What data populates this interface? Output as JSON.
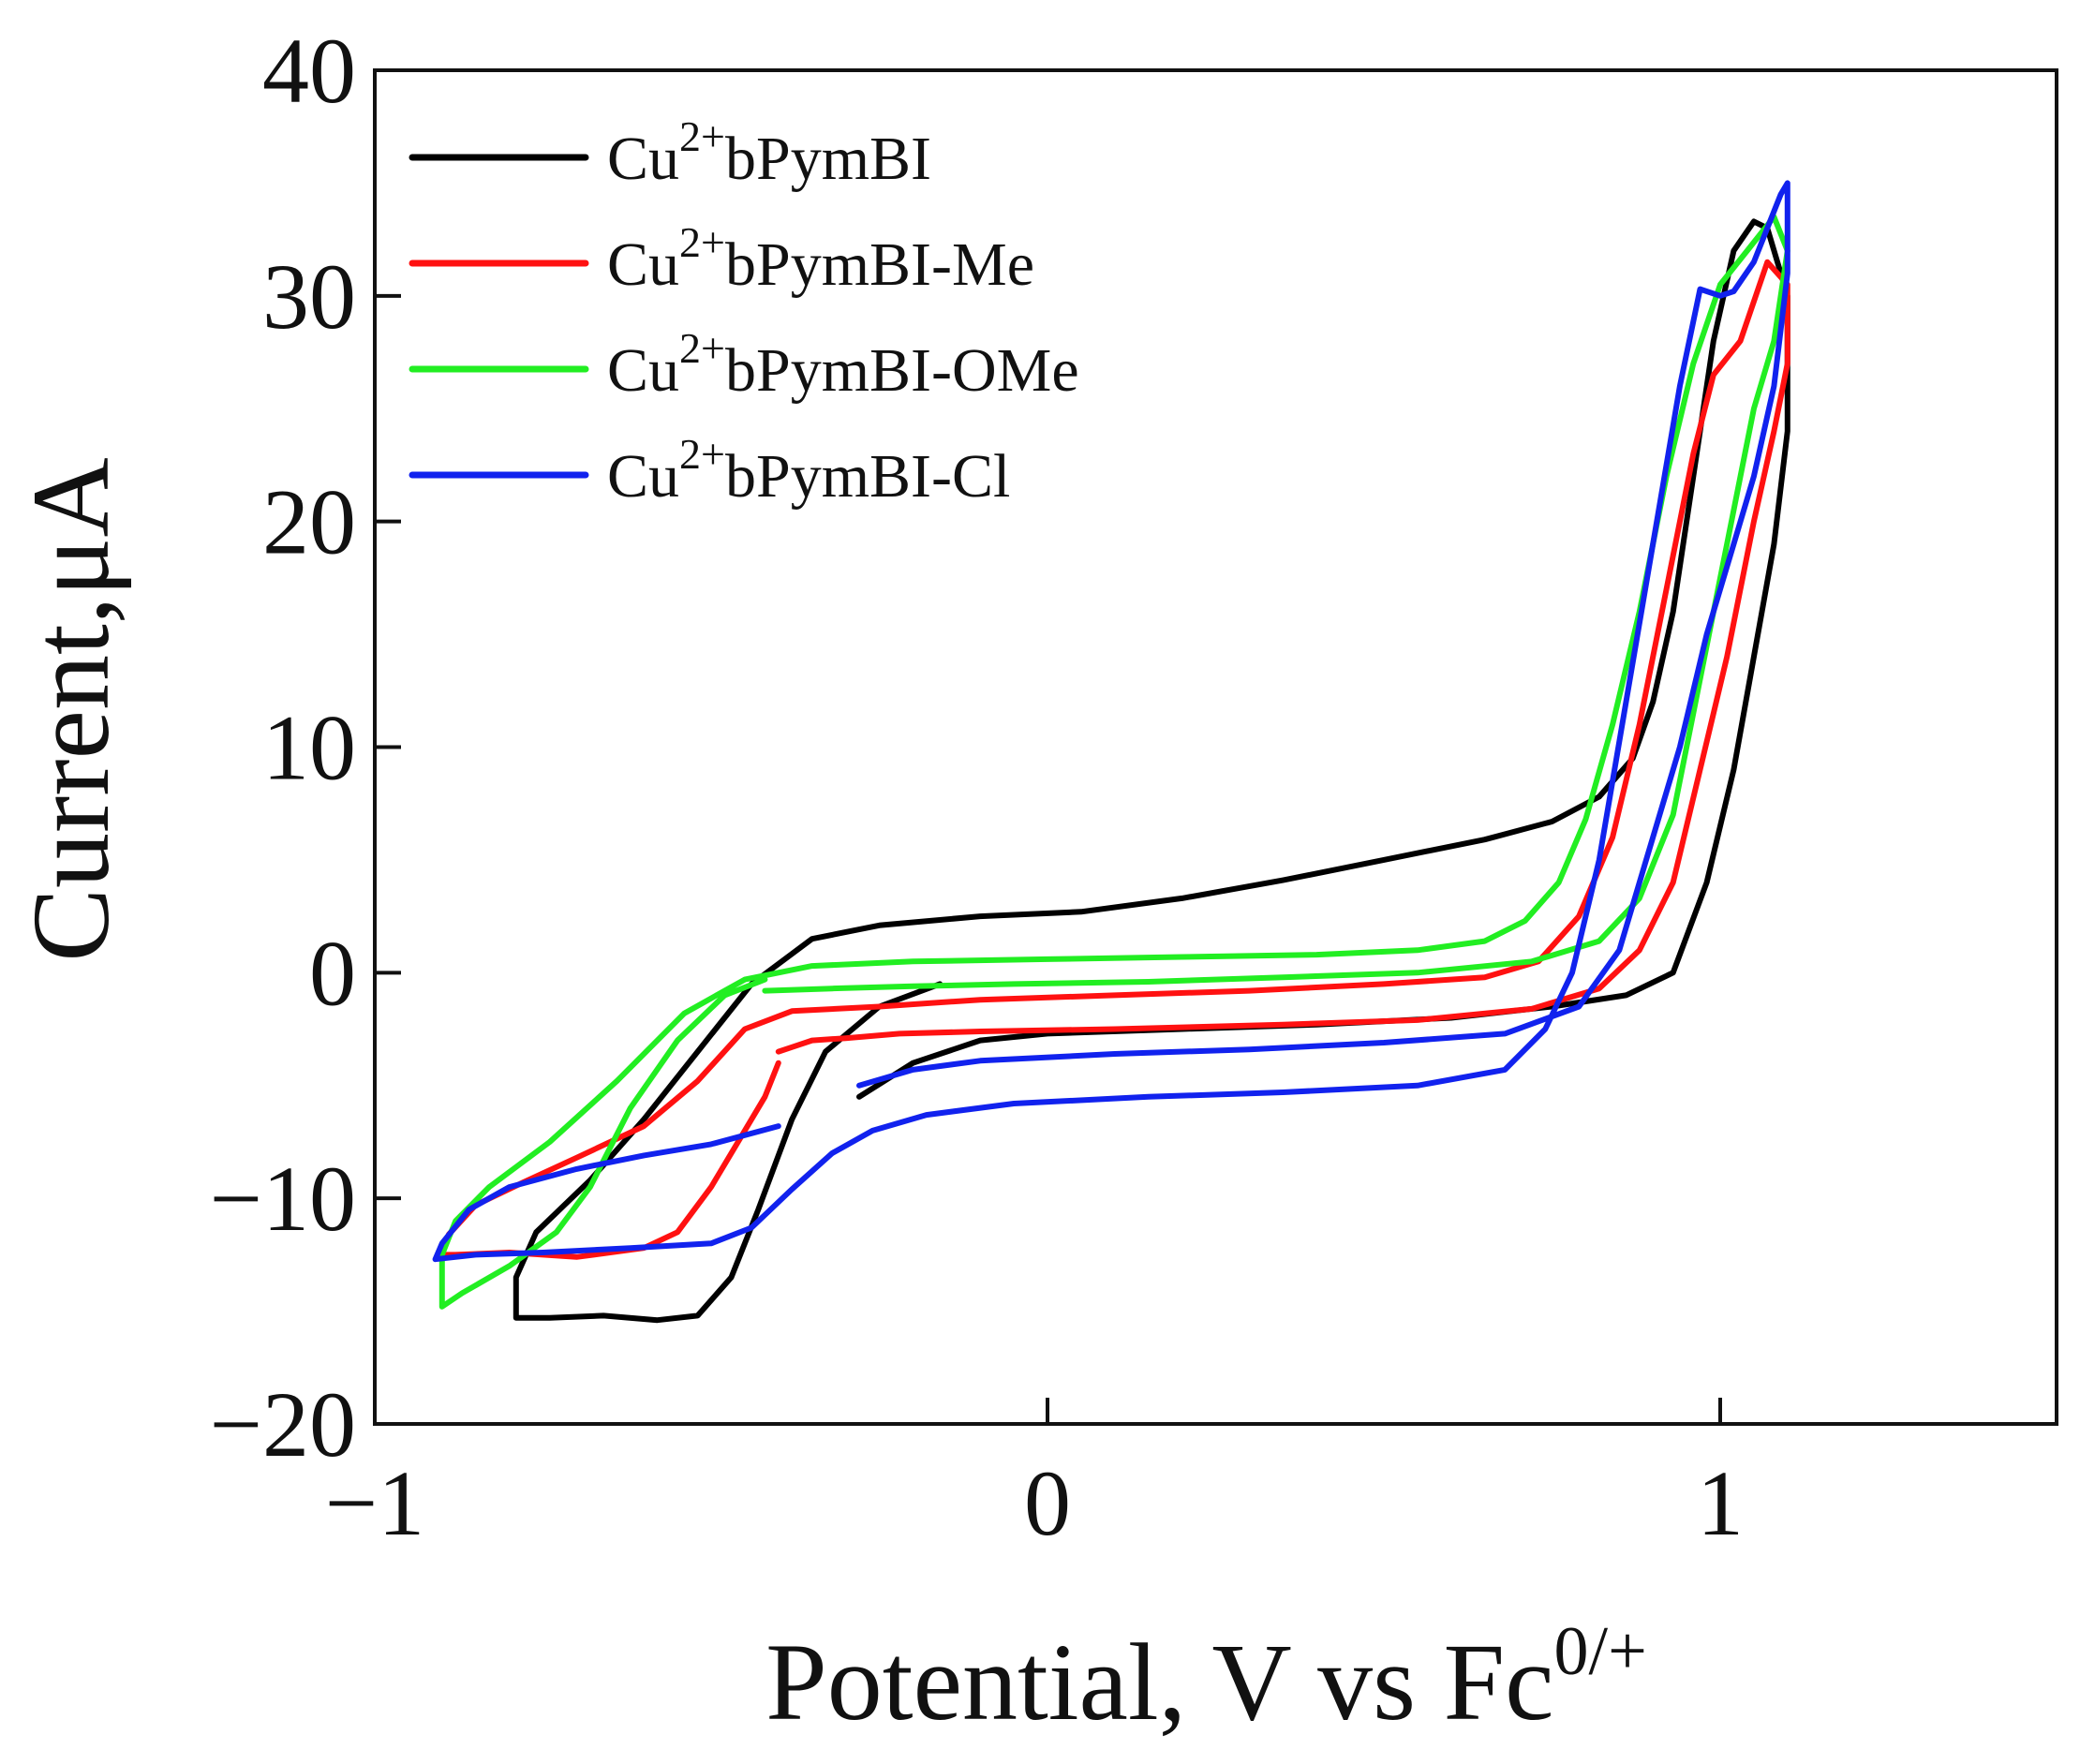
{
  "chart_data": {
    "type": "line",
    "title": "",
    "xlabel": {
      "main": "Potential, V vs Fc",
      "sup": "0/+"
    },
    "ylabel": "Current,μA",
    "xlim": [
      -1,
      1.5
    ],
    "ylim": [
      -20,
      40
    ],
    "xticks": [
      -1,
      0,
      1
    ],
    "xtick_labels": [
      "−1",
      "0",
      "1"
    ],
    "yticks": [
      -20,
      -10,
      0,
      10,
      20,
      30,
      40
    ],
    "ytick_labels": [
      "−20",
      "−10",
      "0",
      "10",
      "20",
      "30",
      "40"
    ],
    "grid": false,
    "legend_position": "top-left",
    "series": [
      {
        "name": {
          "base": "Cu",
          "sup": "2+",
          "rest": "bPymBI"
        },
        "color": "#000000",
        "points": [
          [
            -0.16,
            -0.5
          ],
          [
            -0.25,
            -1.5
          ],
          [
            -0.33,
            -3.5
          ],
          [
            -0.38,
            -6.5
          ],
          [
            -0.43,
            -10.5
          ],
          [
            -0.47,
            -13.5
          ],
          [
            -0.52,
            -15.2
          ],
          [
            -0.58,
            -15.4
          ],
          [
            -0.66,
            -15.2
          ],
          [
            -0.74,
            -15.3
          ],
          [
            -0.79,
            -15.3
          ],
          [
            -0.79,
            -13.5
          ],
          [
            -0.76,
            -11.5
          ],
          [
            -0.68,
            -9.2
          ],
          [
            -0.6,
            -6.5
          ],
          [
            -0.52,
            -3.5
          ],
          [
            -0.44,
            -0.5
          ],
          [
            -0.35,
            1.5
          ],
          [
            -0.25,
            2.1
          ],
          [
            -0.1,
            2.5
          ],
          [
            0.05,
            2.7
          ],
          [
            0.2,
            3.3
          ],
          [
            0.35,
            4.1
          ],
          [
            0.5,
            5
          ],
          [
            0.65,
            5.9
          ],
          [
            0.75,
            6.7
          ],
          [
            0.82,
            7.8
          ],
          [
            0.87,
            9.5
          ],
          [
            0.9,
            12
          ],
          [
            0.93,
            16
          ],
          [
            0.96,
            22
          ],
          [
            0.99,
            28
          ],
          [
            1.02,
            32
          ],
          [
            1.05,
            33.3
          ],
          [
            1.07,
            33
          ],
          [
            1.1,
            30
          ],
          [
            1.1,
            24
          ],
          [
            1.08,
            19
          ],
          [
            1.05,
            14
          ],
          [
            1.02,
            9
          ],
          [
            0.98,
            4
          ],
          [
            0.93,
            0
          ],
          [
            0.86,
            -1
          ],
          [
            0.75,
            -1.5
          ],
          [
            0.6,
            -2
          ],
          [
            0.4,
            -2.3
          ],
          [
            0.2,
            -2.5
          ],
          [
            0.0,
            -2.7
          ],
          [
            -0.1,
            -3
          ],
          [
            -0.2,
            -4
          ],
          [
            -0.28,
            -5.5
          ]
        ]
      },
      {
        "name": {
          "base": "Cu",
          "sup": "2+",
          "rest": "bPymBI-Me"
        },
        "color": "#ff1111",
        "points": [
          [
            -0.4,
            -4
          ],
          [
            -0.42,
            -5.5
          ],
          [
            -0.46,
            -7.5
          ],
          [
            -0.5,
            -9.5
          ],
          [
            -0.55,
            -11.5
          ],
          [
            -0.6,
            -12.2
          ],
          [
            -0.7,
            -12.6
          ],
          [
            -0.8,
            -12.4
          ],
          [
            -0.88,
            -12.5
          ],
          [
            -0.9,
            -12.5
          ],
          [
            -0.89,
            -11.6
          ],
          [
            -0.85,
            -10.3
          ],
          [
            -0.78,
            -9.3
          ],
          [
            -0.7,
            -8.2
          ],
          [
            -0.6,
            -6.8
          ],
          [
            -0.52,
            -4.8
          ],
          [
            -0.45,
            -2.5
          ],
          [
            -0.38,
            -1.7
          ],
          [
            -0.25,
            -1.5
          ],
          [
            -0.1,
            -1.2
          ],
          [
            0.1,
            -1
          ],
          [
            0.3,
            -0.8
          ],
          [
            0.5,
            -0.5
          ],
          [
            0.65,
            -0.2
          ],
          [
            0.73,
            0.5
          ],
          [
            0.79,
            2.5
          ],
          [
            0.84,
            6
          ],
          [
            0.88,
            11
          ],
          [
            0.92,
            17
          ],
          [
            0.96,
            23
          ],
          [
            0.99,
            26.5
          ],
          [
            1.03,
            28
          ],
          [
            1.07,
            31.5
          ],
          [
            1.1,
            30.5
          ],
          [
            1.1,
            27
          ],
          [
            1.08,
            24
          ],
          [
            1.05,
            20
          ],
          [
            1.01,
            14
          ],
          [
            0.97,
            9
          ],
          [
            0.93,
            4
          ],
          [
            0.88,
            1
          ],
          [
            0.82,
            -0.7
          ],
          [
            0.72,
            -1.6
          ],
          [
            0.55,
            -2.1
          ],
          [
            0.35,
            -2.3
          ],
          [
            0.1,
            -2.5
          ],
          [
            -0.1,
            -2.6
          ],
          [
            -0.22,
            -2.7
          ],
          [
            -0.3,
            -2.9
          ],
          [
            -0.35,
            -3
          ],
          [
            -0.38,
            -3.3
          ],
          [
            -0.4,
            -3.5
          ]
        ]
      },
      {
        "name": {
          "base": "Cu",
          "sup": "2+",
          "rest": "bPymBI-OMe"
        },
        "color": "#22ee22",
        "points": [
          [
            -0.42,
            -0.3
          ],
          [
            -0.48,
            -1
          ],
          [
            -0.55,
            -3
          ],
          [
            -0.62,
            -6
          ],
          [
            -0.68,
            -9.5
          ],
          [
            -0.73,
            -11.5
          ],
          [
            -0.8,
            -13
          ],
          [
            -0.87,
            -14.2
          ],
          [
            -0.9,
            -14.8
          ],
          [
            -0.9,
            -12.5
          ],
          [
            -0.88,
            -11
          ],
          [
            -0.83,
            -9.5
          ],
          [
            -0.74,
            -7.5
          ],
          [
            -0.64,
            -4.8
          ],
          [
            -0.54,
            -1.8
          ],
          [
            -0.45,
            -0.3
          ],
          [
            -0.35,
            0.3
          ],
          [
            -0.2,
            0.5
          ],
          [
            0.0,
            0.6
          ],
          [
            0.2,
            0.7
          ],
          [
            0.4,
            0.8
          ],
          [
            0.55,
            1
          ],
          [
            0.65,
            1.4
          ],
          [
            0.71,
            2.3
          ],
          [
            0.76,
            4
          ],
          [
            0.8,
            6.8
          ],
          [
            0.84,
            11
          ],
          [
            0.88,
            16
          ],
          [
            0.92,
            22
          ],
          [
            0.96,
            27
          ],
          [
            1.0,
            30.5
          ],
          [
            1.04,
            32
          ],
          [
            1.08,
            33.5
          ],
          [
            1.1,
            32
          ],
          [
            1.08,
            28
          ],
          [
            1.05,
            25
          ],
          [
            1.01,
            19
          ],
          [
            0.97,
            13
          ],
          [
            0.93,
            7
          ],
          [
            0.88,
            3.3
          ],
          [
            0.82,
            1.4
          ],
          [
            0.72,
            0.5
          ],
          [
            0.55,
            0
          ],
          [
            0.35,
            -0.2
          ],
          [
            0.15,
            -0.4
          ],
          [
            -0.05,
            -0.5
          ],
          [
            -0.2,
            -0.6
          ],
          [
            -0.32,
            -0.7
          ],
          [
            -0.42,
            -0.8
          ]
        ]
      },
      {
        "name": {
          "base": "Cu",
          "sup": "2+",
          "rest": "bPymBI-Cl"
        },
        "color": "#1122ee",
        "points": [
          [
            -0.4,
            -6.8
          ],
          [
            -0.5,
            -7.6
          ],
          [
            -0.6,
            -8.1
          ],
          [
            -0.7,
            -8.7
          ],
          [
            -0.8,
            -9.5
          ],
          [
            -0.86,
            -10.5
          ],
          [
            -0.9,
            -12
          ],
          [
            -0.91,
            -12.7
          ],
          [
            -0.85,
            -12.5
          ],
          [
            -0.75,
            -12.4
          ],
          [
            -0.62,
            -12.2
          ],
          [
            -0.5,
            -12
          ],
          [
            -0.44,
            -11.3
          ],
          [
            -0.38,
            -9.6
          ],
          [
            -0.32,
            -8
          ],
          [
            -0.26,
            -7
          ],
          [
            -0.18,
            -6.3
          ],
          [
            -0.05,
            -5.8
          ],
          [
            0.15,
            -5.5
          ],
          [
            0.35,
            -5.3
          ],
          [
            0.55,
            -5
          ],
          [
            0.68,
            -4.3
          ],
          [
            0.74,
            -2.5
          ],
          [
            0.78,
            0
          ],
          [
            0.82,
            5
          ],
          [
            0.86,
            12
          ],
          [
            0.9,
            19
          ],
          [
            0.94,
            26
          ],
          [
            0.97,
            30.3
          ],
          [
            1.0,
            30
          ],
          [
            1.02,
            30.2
          ],
          [
            1.05,
            31.5
          ],
          [
            1.09,
            34.5
          ],
          [
            1.1,
            35
          ],
          [
            1.1,
            31
          ],
          [
            1.08,
            26
          ],
          [
            1.05,
            22
          ],
          [
            1.02,
            19
          ],
          [
            0.98,
            15
          ],
          [
            0.94,
            10
          ],
          [
            0.89,
            5
          ],
          [
            0.85,
            1
          ],
          [
            0.79,
            -1.5
          ],
          [
            0.68,
            -2.7
          ],
          [
            0.5,
            -3.1
          ],
          [
            0.3,
            -3.4
          ],
          [
            0.1,
            -3.6
          ],
          [
            -0.1,
            -3.9
          ],
          [
            -0.2,
            -4.3
          ],
          [
            -0.28,
            -5
          ]
        ]
      }
    ]
  }
}
